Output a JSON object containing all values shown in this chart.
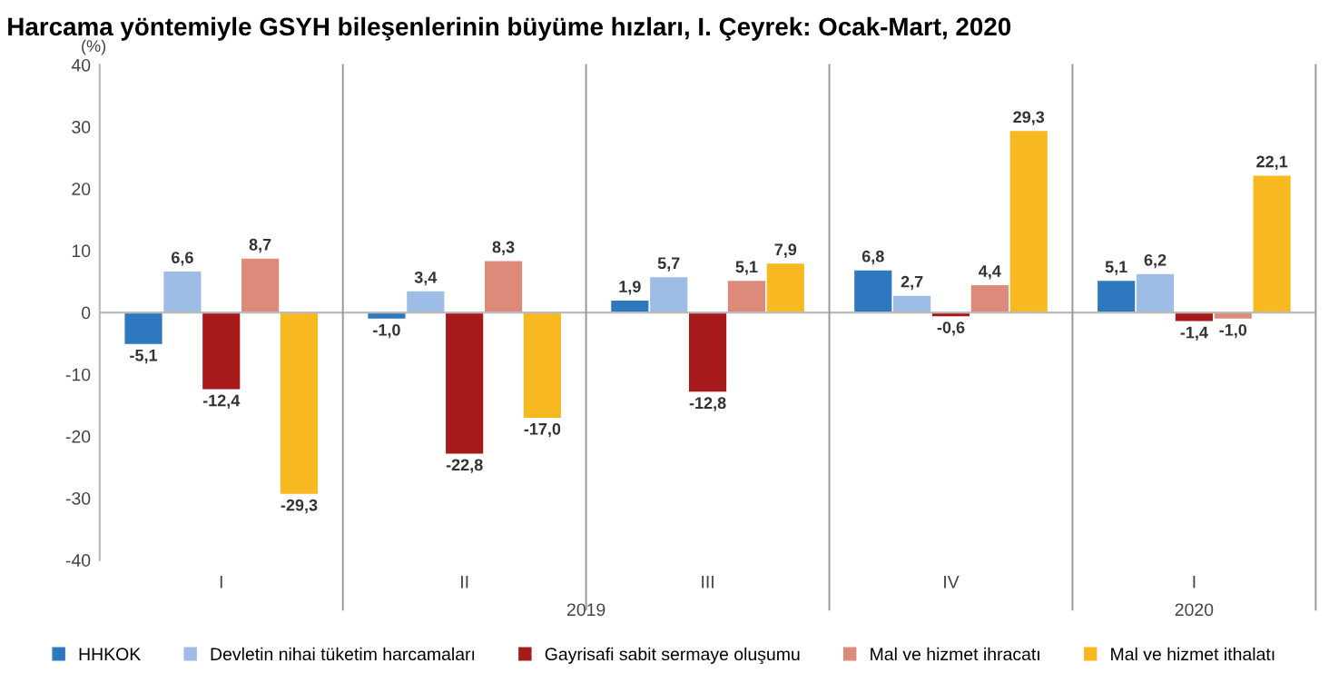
{
  "chart_data": {
    "type": "bar",
    "title": "Harcama yöntemiyle GSYH bileşenlerinin büyüme hızları, I. Çeyrek: Ocak-Mart, 2020",
    "ylabel": "(%)",
    "categories": [
      "I",
      "II",
      "III",
      "IV",
      "I"
    ],
    "series": [
      {
        "name": "HHKOK",
        "color": "#2e78c0",
        "values": [
          -5.1,
          -1.0,
          1.9,
          6.8,
          5.1
        ],
        "value_labels": [
          "-5,1",
          "-1,0",
          "1,9",
          "6,8",
          "5,1"
        ]
      },
      {
        "name": "Devletin nihai tüketim harcamaları",
        "color": "#9dbde6",
        "values": [
          6.6,
          3.4,
          5.7,
          2.7,
          6.2
        ],
        "value_labels": [
          "6,6",
          "3,4",
          "5,7",
          "2,7",
          "6,2"
        ]
      },
      {
        "name": "Gayrisafi sabit sermaye oluşumu",
        "color": "#a8191b",
        "values": [
          -12.4,
          -22.8,
          -12.8,
          -0.6,
          -1.4
        ],
        "value_labels": [
          "-12,4",
          "-22,8",
          "-12,8",
          "-0,6",
          "-1,4"
        ]
      },
      {
        "name": "Mal ve hizmet ihracatı",
        "color": "#dd8a7a",
        "values": [
          8.7,
          8.3,
          5.1,
          4.4,
          -1.0
        ],
        "value_labels": [
          "8,7",
          "8,3",
          "5,1",
          "4,4",
          "-1,0"
        ]
      },
      {
        "name": "Mal ve hizmet ithalatı",
        "color": "#f8b920",
        "values": [
          -29.3,
          -17.0,
          7.9,
          29.3,
          22.1
        ],
        "value_labels": [
          "-29,3",
          "-17,0",
          "7,9",
          "29,3",
          "22,1"
        ]
      }
    ],
    "annotations": [
      "2019",
      "2020"
    ],
    "ylim": [
      -40,
      40
    ],
    "yticks": [
      -40,
      -30,
      -20,
      -10,
      0,
      10,
      20,
      30,
      40
    ],
    "grid": false,
    "legend": "bottom"
  }
}
